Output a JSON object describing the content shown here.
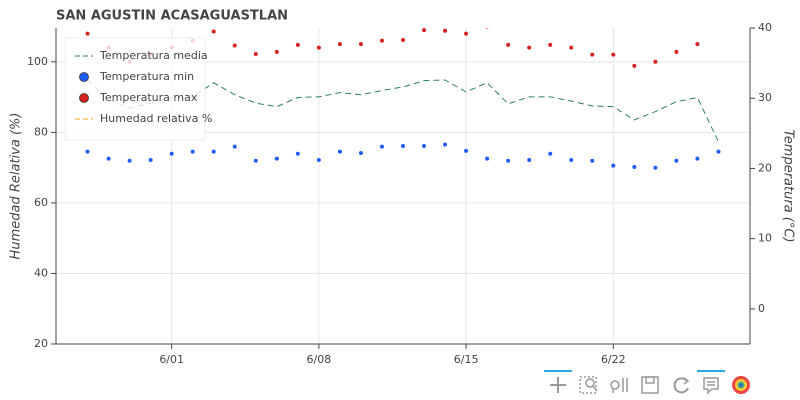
{
  "chart_data": {
    "type": "line",
    "title": "SAN AGUSTIN ACASAGUASTLAN",
    "y_label": "Humedad Relativa (%)",
    "y2_label": "Temperatura (°C)",
    "x": [
      "5/28",
      "5/29",
      "5/30",
      "5/31",
      "6/01",
      "6/02",
      "6/03",
      "6/04",
      "6/05",
      "6/06",
      "6/07",
      "6/08",
      "6/09",
      "6/10",
      "6/11",
      "6/12",
      "6/13",
      "6/14",
      "6/15",
      "6/16",
      "6/17",
      "6/18",
      "6/19",
      "6/20",
      "6/21",
      "6/22",
      "6/23",
      "6/24",
      "6/25",
      "6/26",
      "6/27"
    ],
    "xlim": [
      "5/28",
      "6/27"
    ],
    "xticks": [
      "6/01",
      "6/08",
      "6/15",
      "6/22"
    ],
    "ylim": [
      20,
      109.6
    ],
    "yticks": [
      20,
      40,
      60,
      80,
      100
    ],
    "y2lim": [
      -5,
      40
    ],
    "y2ticks": [
      0,
      10,
      20,
      30,
      40
    ],
    "grid": true,
    "legend": "top-left",
    "series": [
      {
        "name": "Temperatura media",
        "kind": "dashed-line",
        "axis": "y2",
        "color": "#2e7d6b",
        "values": [
          32.6,
          29.8,
          28.6,
          29.3,
          30.1,
          30.2,
          32.2,
          30.5,
          29.3,
          28.8,
          30.1,
          30.2,
          30.8,
          30.5,
          31.1,
          31.6,
          32.5,
          32.6,
          30.9,
          32.2,
          29.2,
          30.2,
          30.2,
          29.6,
          28.9,
          28.8,
          26.9,
          28.1,
          29.5,
          30.1,
          23.8
        ]
      },
      {
        "name": "Temperatura min",
        "kind": "dots",
        "axis": "y2",
        "color": "#1f5cff",
        "values": [
          22.4,
          21.4,
          21.1,
          21.2,
          22.1,
          22.4,
          22.4,
          23.1,
          21.1,
          21.4,
          22.1,
          21.2,
          22.4,
          22.2,
          23.1,
          23.2,
          23.2,
          23.4,
          22.5,
          21.4,
          21.1,
          21.2,
          22.1,
          21.2,
          21.1,
          20.4,
          20.2,
          20.1,
          21.1,
          21.4,
          22.4
        ]
      },
      {
        "name": "Temperatura max",
        "kind": "dots",
        "axis": "y2",
        "color": "#d62020",
        "values": [
          39.2,
          37.2,
          35.2,
          36.2,
          37.2,
          38.2,
          39.5,
          37.5,
          36.3,
          36.6,
          37.6,
          37.2,
          37.7,
          37.7,
          38.2,
          38.3,
          39.7,
          39.6,
          39.2,
          40.2,
          37.6,
          37.2,
          37.6,
          37.2,
          36.2,
          36.2,
          34.6,
          35.2,
          36.6,
          37.7,
          null
        ]
      },
      {
        "name": "Humedad relativa %",
        "kind": "dashed-line",
        "axis": "y",
        "color": "#f0a020",
        "values": [
          null,
          null,
          null,
          null,
          null,
          null,
          null,
          null,
          null,
          null,
          null,
          null,
          null,
          null,
          null,
          null,
          null,
          null,
          null,
          null,
          null,
          null,
          null,
          null,
          null,
          null,
          null,
          null,
          null,
          null,
          null
        ]
      }
    ]
  }
}
